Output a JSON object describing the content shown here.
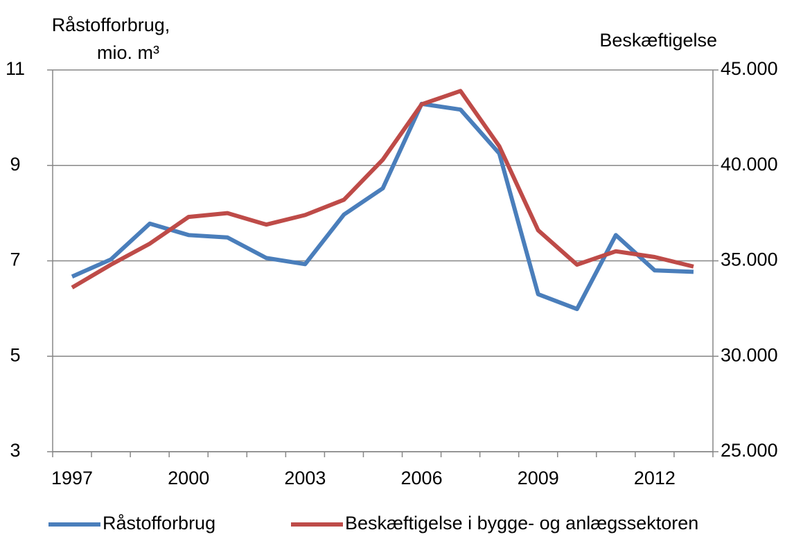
{
  "chart_data": {
    "type": "line",
    "ylabel": [
      "Råstofforbrug,",
      "mio. m³"
    ],
    "y2label": "Beskæftigelse",
    "categories": [
      "1997",
      null,
      null,
      "2000",
      null,
      null,
      "2003",
      null,
      null,
      "2006",
      null,
      null,
      "2009",
      null,
      null,
      "2012",
      null
    ],
    "series": [
      {
        "name": "Råstofforbrug",
        "color": "#4a7ebb",
        "values": [
          6.67,
          7.03,
          7.78,
          7.54,
          7.49,
          7.06,
          6.93,
          7.97,
          8.52,
          10.29,
          10.17,
          9.25,
          6.3,
          5.99,
          7.54,
          6.8,
          6.77
        ]
      },
      {
        "name": "Beskæftigelse i bygge- og anlægssektoren",
        "color": "#be4b48",
        "axis": "y2",
        "values": [
          33600,
          34800,
          35900,
          37300,
          37500,
          36900,
          37400,
          38200,
          40300,
          43200,
          43900,
          41000,
          36600,
          34800,
          35500,
          35200,
          34700
        ]
      }
    ],
    "ylim": [
      3,
      11
    ],
    "yticks": [
      3,
      5,
      7,
      9,
      11
    ],
    "y2lim": [
      25000,
      45000
    ],
    "y2ticks": [
      {
        "value": 25000,
        "label": "25.000"
      },
      {
        "value": 30000,
        "label": "30.000"
      },
      {
        "value": 35000,
        "label": "35.000"
      },
      {
        "value": 40000,
        "label": "40.000"
      },
      {
        "value": 45000,
        "label": "45.000"
      }
    ],
    "grid": true
  }
}
